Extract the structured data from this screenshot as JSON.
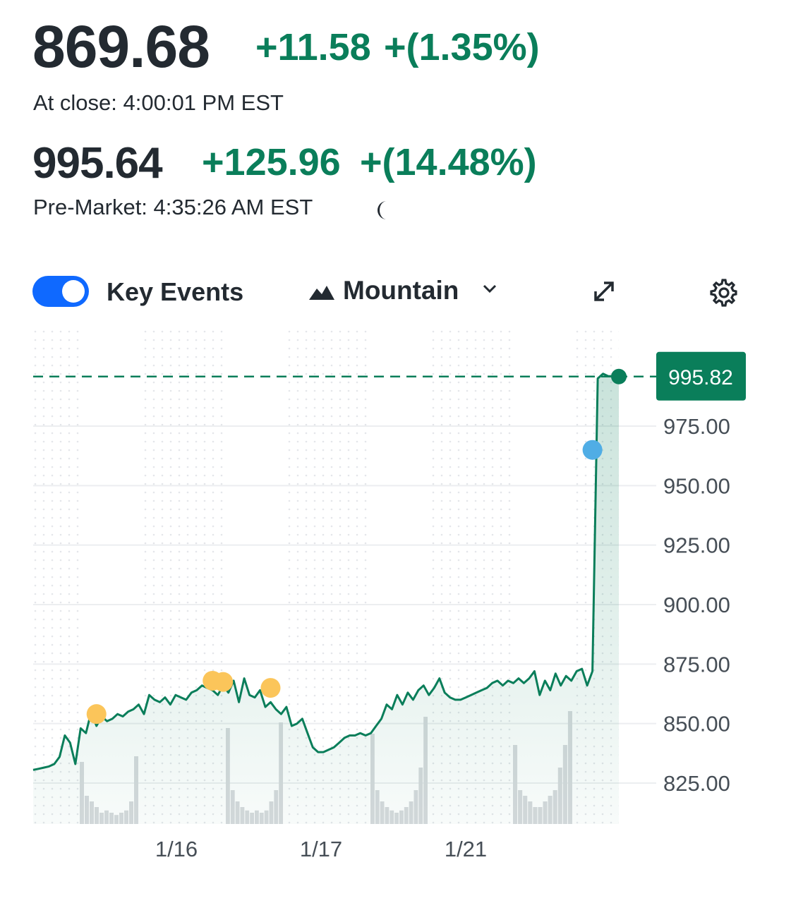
{
  "quote": {
    "price": "869.68",
    "change": "+11.58",
    "change_pct": "+(1.35%)",
    "close_label": "At close: 4:00:01 PM EST",
    "pre_price": "995.64",
    "pre_change": "+125.96",
    "pre_change_pct": "+(14.48%)",
    "pre_label": "Pre-Market: 4:35:26 AM EST"
  },
  "toolbar": {
    "key_events_label": "Key Events",
    "key_events_on": true,
    "chart_type_label": "Mountain",
    "icons": [
      "mountain-icon",
      "chevron-down-icon",
      "expand-icon",
      "settings-gear-icon",
      "moon-icon"
    ]
  },
  "colors": {
    "accent_green": "#0a7e5a",
    "toggle_blue": "#0f69ff",
    "event_orange": "#fbc55a",
    "event_blue": "#50ade5"
  },
  "chart_data": {
    "type": "area",
    "x_tick_labels": [
      "1/16",
      "1/17",
      "1/21"
    ],
    "y_tick_labels": [
      "975.00",
      "950.00",
      "925.00",
      "900.00",
      "875.00",
      "850.00",
      "825.00"
    ],
    "ylim": [
      815,
      1005
    ],
    "current_label": "995.82",
    "current_value": 995.82,
    "series": [
      {
        "values": [
          830.5,
          831,
          831.5,
          832,
          833,
          836,
          845,
          842,
          833,
          848,
          846,
          855,
          849,
          853,
          851,
          852,
          854,
          853,
          855,
          856,
          858,
          854,
          862,
          860,
          859,
          861,
          858,
          862,
          861,
          860,
          863,
          864,
          866,
          865,
          864,
          862,
          866,
          863,
          868,
          859,
          869,
          862,
          861,
          864,
          857,
          859,
          856,
          854,
          857,
          849,
          850,
          852,
          846,
          840,
          838,
          838,
          839,
          840,
          842,
          844,
          845,
          845,
          846,
          845,
          846,
          849,
          852,
          858,
          856,
          862,
          858,
          863,
          860,
          864,
          866,
          862,
          865,
          869,
          863,
          861,
          860,
          860,
          861,
          862,
          863,
          864,
          865,
          867,
          868,
          866,
          868,
          867,
          869,
          867,
          869,
          872,
          862,
          868,
          864,
          871,
          866,
          870,
          868,
          872,
          873,
          866,
          872,
          995,
          997,
          996,
          996,
          995.82
        ]
      }
    ],
    "events": [
      {
        "kind": "dividend",
        "value": 854,
        "index": 12
      },
      {
        "kind": "dividend",
        "value": 868,
        "index": 34
      },
      {
        "kind": "dividend",
        "value": 867.5,
        "index": 36
      },
      {
        "kind": "dividend",
        "value": 865,
        "index": 45
      },
      {
        "kind": "news",
        "value": 965,
        "index": 106
      }
    ],
    "volume": [
      [
        0,
        0,
        0,
        0,
        0,
        0,
        0,
        0,
        0,
        0,
        0,
        0
      ],
      [
        0.55,
        0.25,
        0.2,
        0.15,
        0.1,
        0.12,
        0.1,
        0.08,
        0.1,
        0.12,
        0.2,
        0.6
      ],
      [
        0,
        0,
        0,
        0,
        0,
        0,
        0,
        0,
        0,
        0
      ],
      [
        0.85,
        0.3,
        0.2,
        0.15,
        0.12,
        0.1,
        0.12,
        0.1,
        0.12,
        0.2,
        0.3,
        0.9
      ],
      [
        0,
        0,
        0,
        0,
        0,
        0,
        0,
        0,
        0,
        0
      ],
      [
        0.8,
        0.3,
        0.2,
        0.15,
        0.12,
        0.1,
        0.12,
        0.15,
        0.2,
        0.3,
        0.5,
        0.95
      ],
      [
        0,
        0,
        0,
        0,
        0,
        0,
        0,
        0,
        0,
        0
      ],
      [
        0.7,
        0.3,
        0.25,
        0.2,
        0.15,
        0.15,
        0.2,
        0.25,
        0.3,
        0.5,
        0.7,
        1.0
      ]
    ],
    "grid": true
  }
}
